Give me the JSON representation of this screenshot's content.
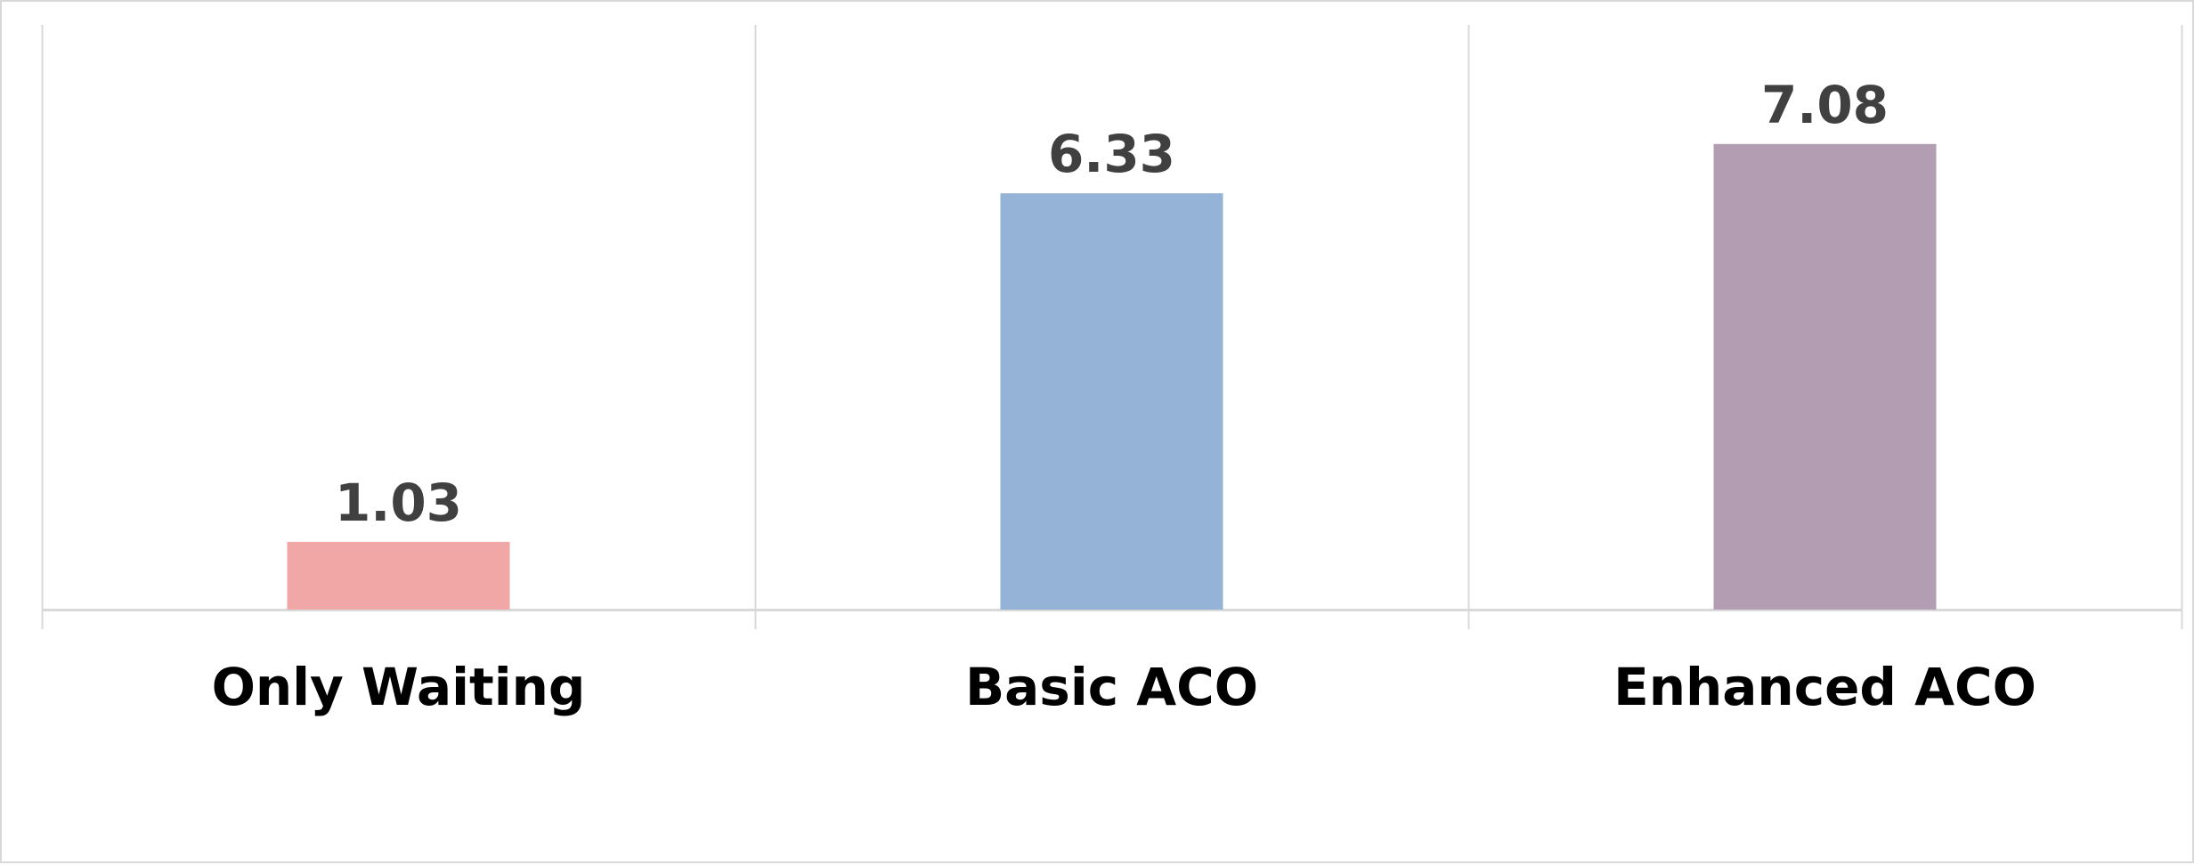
{
  "chart_data": {
    "type": "bar",
    "title": "",
    "xlabel": "",
    "ylabel": "",
    "categories": [
      "Only Waiting",
      "Basic ACO",
      "Enhanced ACO"
    ],
    "values": [
      1.03,
      6.33,
      7.08
    ],
    "data_labels": [
      "1.03",
      "6.33",
      "7.08"
    ],
    "colors": [
      "#f2a7a7",
      "#95b3d7",
      "#b39db3"
    ],
    "ylim": [
      0,
      7.4
    ],
    "grid": "vertical category separators",
    "legend": "none",
    "axis_color": "#d9d9d9"
  }
}
